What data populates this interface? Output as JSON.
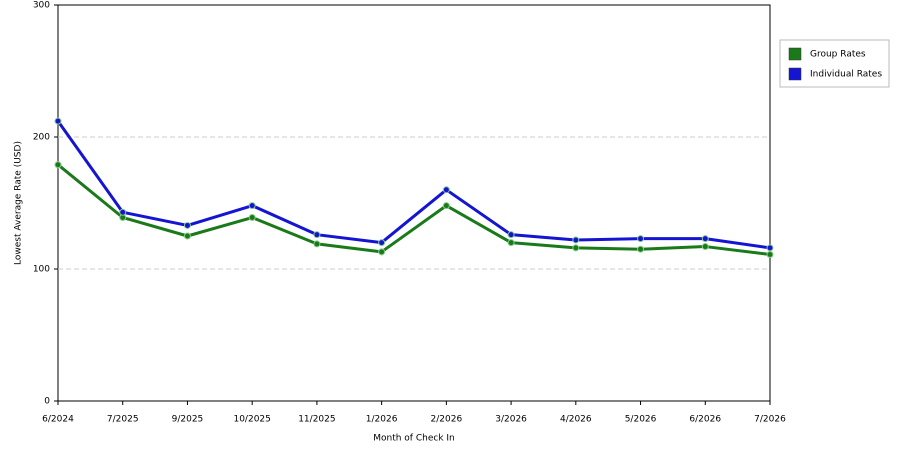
{
  "chart_data": {
    "type": "line",
    "x_label": "Month of Check In",
    "y_label": "Lowest Average Rate (USD)",
    "categories": [
      "6/2024",
      "7/2025",
      "9/2025",
      "10/2025",
      "11/2025",
      "1/2026",
      "2/2026",
      "3/2026",
      "4/2026",
      "5/2026",
      "6/2026",
      "7/2026"
    ],
    "series": [
      {
        "name": "Group Rates",
        "color": "#1a7a1a",
        "values": [
          179,
          139,
          125,
          139,
          119,
          113,
          148,
          120,
          116,
          115,
          117,
          111
        ]
      },
      {
        "name": "Individual Rates",
        "color": "#1414d2",
        "values": [
          212,
          143,
          133,
          148,
          126,
          120,
          160,
          126,
          122,
          123,
          123,
          116
        ]
      }
    ],
    "ylim": [
      0,
      300
    ],
    "yticks": [
      0,
      100,
      200,
      300
    ],
    "grid": true,
    "legend": "right"
  }
}
